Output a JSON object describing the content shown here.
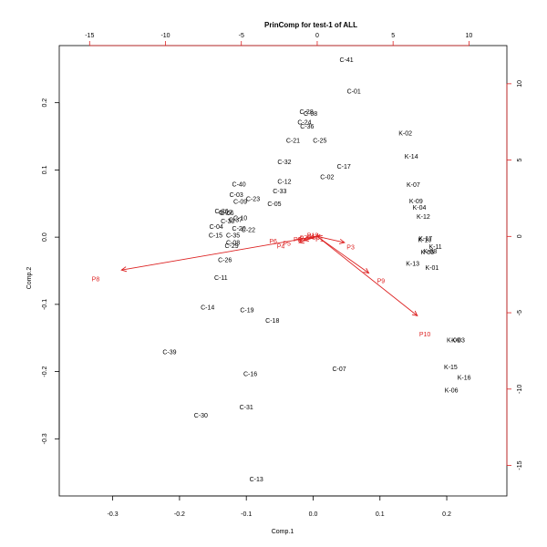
{
  "chart_data": {
    "type": "scatter",
    "title": "PrinComp for test-1 of ALL",
    "xlabel": "Comp.1",
    "ylabel": "Comp.2",
    "xlim": [
      -0.38,
      0.29
    ],
    "ylim": [
      -0.385,
      0.285
    ],
    "x_ticks": [
      -0.3,
      -0.2,
      -0.1,
      0.0,
      0.1,
      0.2
    ],
    "x_tick_labels": [
      "-0.3",
      "-0.2",
      "-0.1",
      "0.0",
      "0.1",
      "0.2"
    ],
    "y_ticks": [
      -0.3,
      -0.2,
      -0.1,
      0.0,
      0.1,
      0.2
    ],
    "y_tick_labels": [
      "-0.3",
      "-0.2",
      "-0.1",
      "0.0",
      "0.1",
      "0.2"
    ],
    "top_axis": {
      "ticks": [
        -15,
        -10,
        -5,
        0,
        5,
        10
      ],
      "tick_labels": [
        "-15",
        "-10",
        "-5",
        "0",
        "5",
        "10"
      ],
      "lim": [
        -17.0,
        12.5
      ]
    },
    "right_axis": {
      "ticks": [
        10,
        5,
        0,
        -5,
        -10,
        -15
      ],
      "tick_labels": [
        "10",
        "5",
        "0",
        "-5",
        "-10",
        "-15"
      ],
      "lim": [
        -17.0,
        12.5
      ]
    },
    "colors": {
      "observations": "#000000",
      "variables": "#dd2222"
    },
    "observations": [
      {
        "label": "C-41",
        "x": 0.05,
        "y": 0.264
      },
      {
        "label": "C-01",
        "x": 0.061,
        "y": 0.217
      },
      {
        "label": "C-28",
        "x": -0.01,
        "y": 0.187
      },
      {
        "label": "C-08",
        "x": -0.004,
        "y": 0.184
      },
      {
        "label": "C-24",
        "x": -0.013,
        "y": 0.171
      },
      {
        "label": "C-36",
        "x": -0.009,
        "y": 0.165
      },
      {
        "label": "C-21",
        "x": -0.03,
        "y": 0.144
      },
      {
        "label": "C-25",
        "x": 0.01,
        "y": 0.144
      },
      {
        "label": "K-02",
        "x": 0.138,
        "y": 0.155
      },
      {
        "label": "K-14",
        "x": 0.147,
        "y": 0.12
      },
      {
        "label": "C-32",
        "x": -0.043,
        "y": 0.112
      },
      {
        "label": "C-17",
        "x": 0.046,
        "y": 0.105
      },
      {
        "label": "C-02",
        "x": 0.021,
        "y": 0.09
      },
      {
        "label": "K-07",
        "x": 0.15,
        "y": 0.078
      },
      {
        "label": "C-12",
        "x": -0.043,
        "y": 0.083
      },
      {
        "label": "C-40",
        "x": -0.111,
        "y": 0.079
      },
      {
        "label": "C-33",
        "x": -0.05,
        "y": 0.069
      },
      {
        "label": "C-03",
        "x": -0.115,
        "y": 0.063
      },
      {
        "label": "C-23",
        "x": -0.09,
        "y": 0.057
      },
      {
        "label": "C-09",
        "x": -0.109,
        "y": 0.053
      },
      {
        "label": "C-05",
        "x": -0.058,
        "y": 0.05
      },
      {
        "label": "K-09",
        "x": 0.154,
        "y": 0.054
      },
      {
        "label": "K-04",
        "x": 0.159,
        "y": 0.044
      },
      {
        "label": "C-26",
        "x": -0.137,
        "y": 0.039
      },
      {
        "label": "C-27",
        "x": -0.131,
        "y": 0.037
      },
      {
        "label": "C-06",
        "x": -0.129,
        "y": 0.036
      },
      {
        "label": "K-12",
        "x": 0.165,
        "y": 0.031
      },
      {
        "label": "C-10",
        "x": -0.109,
        "y": 0.029
      },
      {
        "label": "C-37",
        "x": -0.116,
        "y": 0.026
      },
      {
        "label": "C-30",
        "x": -0.128,
        "y": 0.024
      },
      {
        "label": "C-04",
        "x": -0.145,
        "y": 0.016
      },
      {
        "label": "C-20",
        "x": -0.111,
        "y": 0.013
      },
      {
        "label": "C-22",
        "x": -0.097,
        "y": 0.011
      },
      {
        "label": "C-15",
        "x": -0.146,
        "y": 0.003
      },
      {
        "label": "C-35",
        "x": -0.12,
        "y": 0.003
      },
      {
        "label": "C-08",
        "x": -0.12,
        "y": -0.008
      },
      {
        "label": "C-29",
        "x": -0.122,
        "y": -0.013
      },
      {
        "label": "K-10",
        "x": 0.167,
        "y": -0.004
      },
      {
        "label": "K-17",
        "x": 0.168,
        "y": -0.002
      },
      {
        "label": "K-11",
        "x": 0.183,
        "y": -0.014
      },
      {
        "label": "K-08",
        "x": 0.175,
        "y": -0.021
      },
      {
        "label": "K-05",
        "x": 0.171,
        "y": -0.022
      },
      {
        "label": "C-26",
        "x": -0.132,
        "y": -0.034
      },
      {
        "label": "K-13",
        "x": 0.149,
        "y": -0.039
      },
      {
        "label": "K-01",
        "x": 0.178,
        "y": -0.045
      },
      {
        "label": "C-11",
        "x": -0.138,
        "y": -0.06
      },
      {
        "label": "C-14",
        "x": -0.158,
        "y": -0.104
      },
      {
        "label": "C-19",
        "x": -0.099,
        "y": -0.108
      },
      {
        "label": "C-18",
        "x": -0.061,
        "y": -0.124
      },
      {
        "label": "K-09",
        "x": 0.21,
        "y": -0.153
      },
      {
        "label": "K-03",
        "x": 0.217,
        "y": -0.153
      },
      {
        "label": "C-39",
        "x": -0.215,
        "y": -0.171
      },
      {
        "label": "C-07",
        "x": 0.039,
        "y": -0.196
      },
      {
        "label": "K-15",
        "x": 0.206,
        "y": -0.193
      },
      {
        "label": "C-16",
        "x": -0.094,
        "y": -0.203
      },
      {
        "label": "K-16",
        "x": 0.226,
        "y": -0.209
      },
      {
        "label": "K-06",
        "x": 0.207,
        "y": -0.228
      },
      {
        "label": "C-31",
        "x": -0.1,
        "y": -0.253
      },
      {
        "label": "C-30",
        "x": -0.168,
        "y": -0.265
      },
      {
        "label": "C-13",
        "x": -0.085,
        "y": -0.36
      }
    ],
    "variables": [
      {
        "label": "P8",
        "x": -12.9,
        "y": -2.2,
        "label_x": -14.6,
        "label_y": -2.8
      },
      {
        "label": "P10",
        "x": 6.6,
        "y": -5.2,
        "label_x": 7.1,
        "label_y": -6.4
      },
      {
        "label": "P9",
        "x": 3.4,
        "y": -2.4,
        "label_x": 4.2,
        "label_y": -2.9
      },
      {
        "label": "P3",
        "x": 1.8,
        "y": -0.4,
        "label_x": 2.2,
        "label_y": -0.7
      },
      {
        "label": "P1",
        "x": 0.35,
        "y": 0.05,
        "label_x": 0.15,
        "label_y": -0.2
      },
      {
        "label": "P11",
        "x": 0.2,
        "y": 0.12,
        "label_x": -0.3,
        "label_y": -0.02
      },
      {
        "label": "P12",
        "x": 0.05,
        "y": 0.2,
        "label_x": -0.3,
        "label_y": 0.08
      },
      {
        "label": "P6",
        "x": -1.3,
        "y": -0.2,
        "label_x": -2.9,
        "label_y": -0.3
      },
      {
        "label": "P4",
        "x": -1.2,
        "y": -0.4,
        "label_x": -2.4,
        "label_y": -0.65
      },
      {
        "label": "P5",
        "x": -0.9,
        "y": -0.25,
        "label_x": -2.0,
        "label_y": -0.45
      },
      {
        "label": "P2",
        "x": -0.5,
        "y": -0.1,
        "label_x": -1.3,
        "label_y": -0.2
      },
      {
        "label": "P7",
        "x": -0.3,
        "y": 0.0,
        "label_x": -0.9,
        "label_y": -0.1
      }
    ]
  }
}
